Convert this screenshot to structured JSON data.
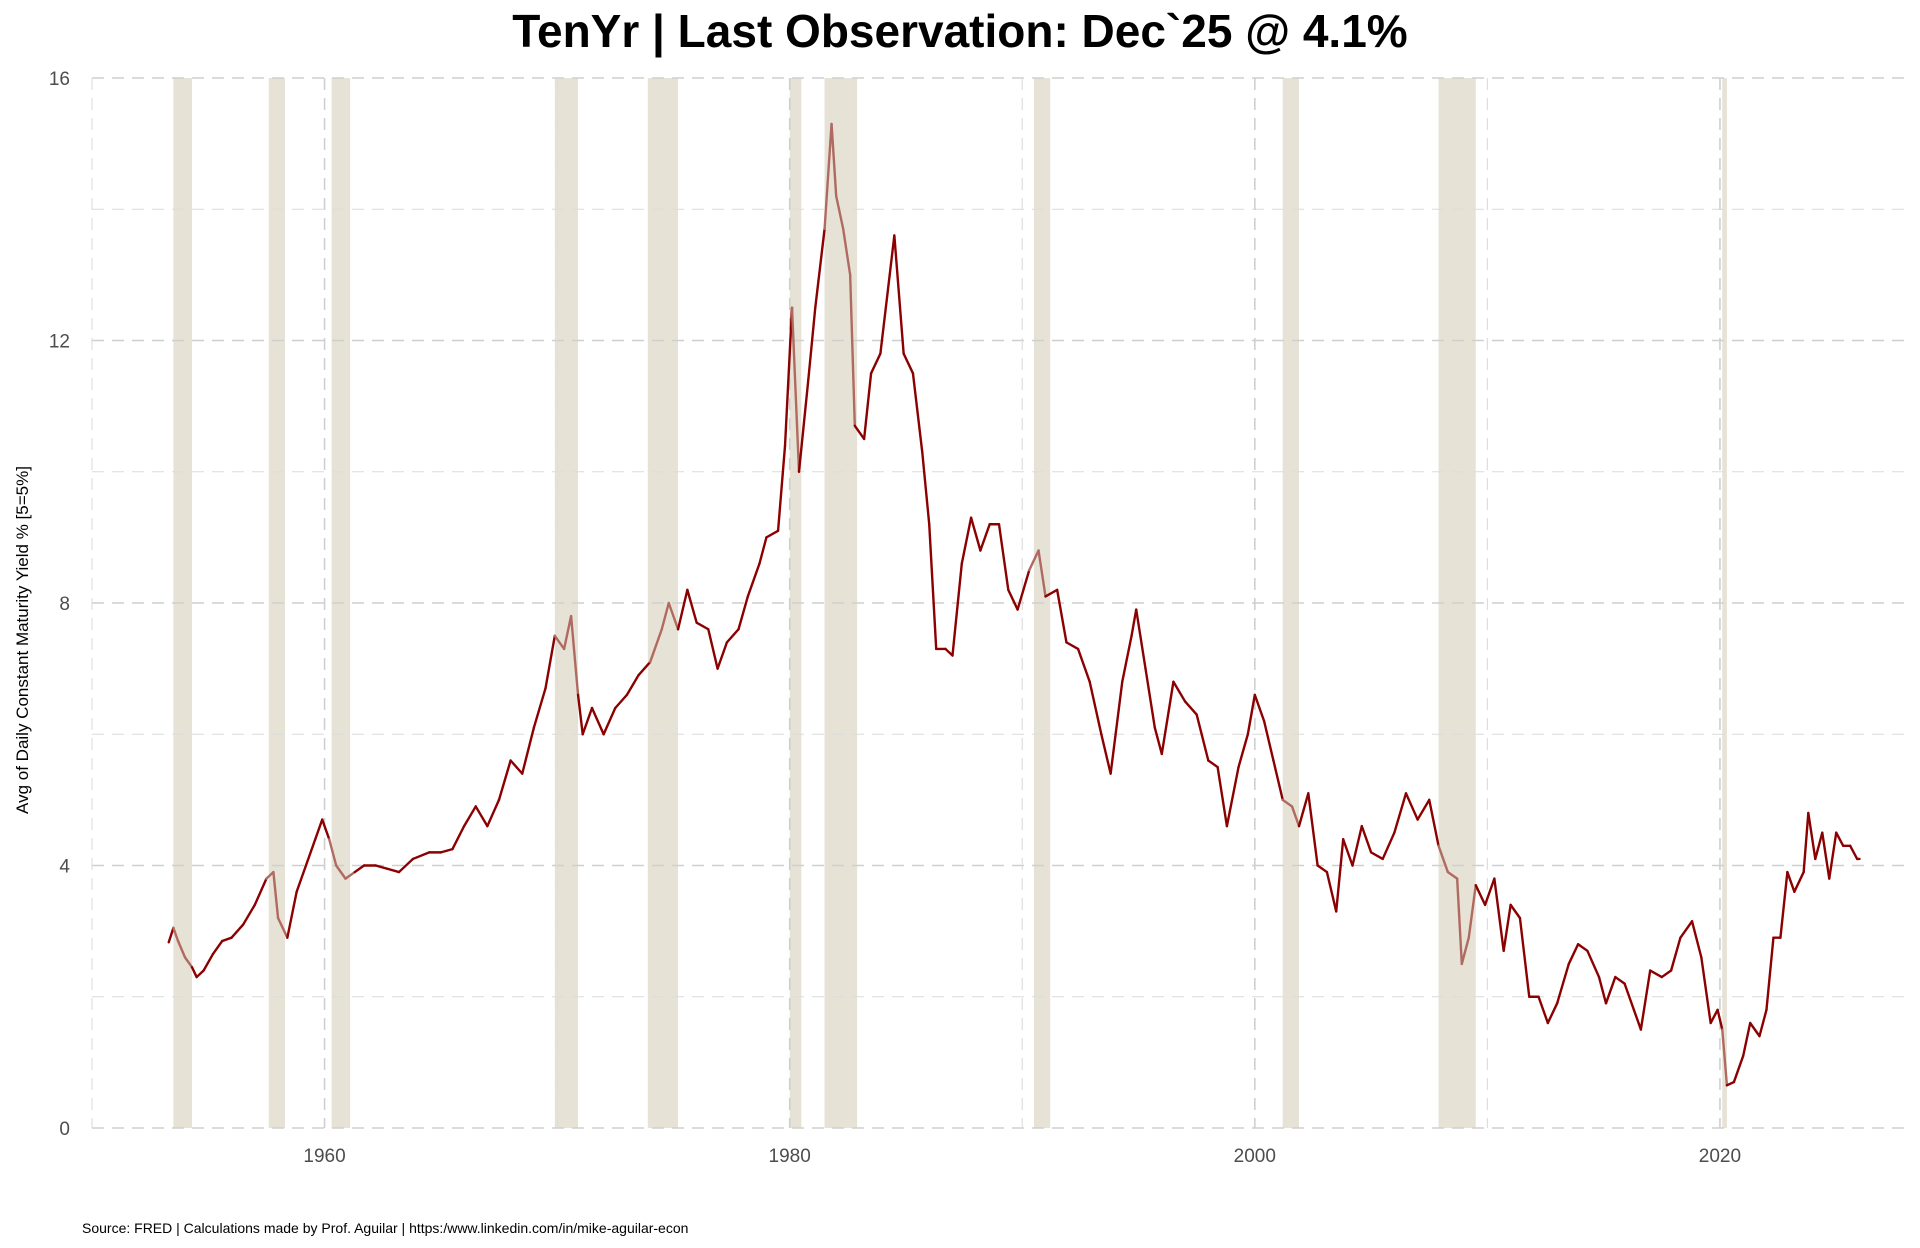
{
  "chart_data": {
    "type": "line",
    "title": "TenYr | Last Observation: Dec`25 @ 4.1%",
    "xlabel": "",
    "ylabel": "Avg of Daily Constant Maturity Yield % [5=5%]",
    "xlim": [
      1950,
      2028
    ],
    "ylim": [
      0,
      16
    ],
    "x_ticks": [
      1960,
      1980,
      2000,
      2020
    ],
    "y_ticks": [
      0,
      4,
      8,
      12,
      16
    ],
    "grid": true,
    "legend": "none",
    "source": "Source: FRED | Calculations made by Prof. Aguilar | https:/www.linkedin.com/in/mike-aguilar-econ",
    "colors": {
      "line": "#8b0000",
      "recession_line": "#b06a60",
      "recession_band": "#e6e2d6",
      "grid": "#cccccc"
    },
    "recessions": [
      [
        1953.5,
        1954.3
      ],
      [
        1957.6,
        1958.3
      ],
      [
        1960.3,
        1961.1
      ],
      [
        1969.9,
        1970.9
      ],
      [
        1973.9,
        1975.2
      ],
      [
        1980.0,
        1980.5
      ],
      [
        1981.5,
        1982.9
      ],
      [
        1990.5,
        1991.2
      ],
      [
        2001.2,
        2001.9
      ],
      [
        2007.9,
        2009.5
      ],
      [
        2020.1,
        2020.3
      ]
    ],
    "series": [
      {
        "points": [
          [
            1953.3,
            2.83
          ],
          [
            1953.5,
            3.05
          ],
          [
            1953.7,
            2.85
          ],
          [
            1954.0,
            2.6
          ],
          [
            1954.3,
            2.45
          ],
          [
            1954.5,
            2.3
          ],
          [
            1954.8,
            2.4
          ],
          [
            1955.2,
            2.65
          ],
          [
            1955.6,
            2.85
          ],
          [
            1956.0,
            2.9
          ],
          [
            1956.5,
            3.1
          ],
          [
            1957.0,
            3.4
          ],
          [
            1957.5,
            3.8
          ],
          [
            1957.8,
            3.9
          ],
          [
            1958.0,
            3.2
          ],
          [
            1958.4,
            2.9
          ],
          [
            1958.8,
            3.6
          ],
          [
            1959.2,
            4.0
          ],
          [
            1959.6,
            4.4
          ],
          [
            1959.9,
            4.7
          ],
          [
            1960.2,
            4.4
          ],
          [
            1960.5,
            4.0
          ],
          [
            1960.9,
            3.8
          ],
          [
            1961.3,
            3.9
          ],
          [
            1961.7,
            4.0
          ],
          [
            1962.2,
            4.0
          ],
          [
            1962.7,
            3.95
          ],
          [
            1963.2,
            3.9
          ],
          [
            1963.8,
            4.1
          ],
          [
            1964.5,
            4.2
          ],
          [
            1965.0,
            4.2
          ],
          [
            1965.5,
            4.25
          ],
          [
            1966.0,
            4.6
          ],
          [
            1966.5,
            4.9
          ],
          [
            1967.0,
            4.6
          ],
          [
            1967.5,
            5.0
          ],
          [
            1968.0,
            5.6
          ],
          [
            1968.5,
            5.4
          ],
          [
            1969.0,
            6.1
          ],
          [
            1969.5,
            6.7
          ],
          [
            1969.9,
            7.5
          ],
          [
            1970.3,
            7.3
          ],
          [
            1970.6,
            7.8
          ],
          [
            1970.9,
            6.6
          ],
          [
            1971.1,
            6.0
          ],
          [
            1971.5,
            6.4
          ],
          [
            1972.0,
            6.0
          ],
          [
            1972.5,
            6.4
          ],
          [
            1973.0,
            6.6
          ],
          [
            1973.5,
            6.9
          ],
          [
            1974.0,
            7.1
          ],
          [
            1974.5,
            7.6
          ],
          [
            1974.8,
            8.0
          ],
          [
            1975.2,
            7.6
          ],
          [
            1975.6,
            8.2
          ],
          [
            1976.0,
            7.7
          ],
          [
            1976.5,
            7.6
          ],
          [
            1976.9,
            7.0
          ],
          [
            1977.3,
            7.4
          ],
          [
            1977.8,
            7.6
          ],
          [
            1978.2,
            8.1
          ],
          [
            1978.7,
            8.6
          ],
          [
            1979.0,
            9.0
          ],
          [
            1979.5,
            9.1
          ],
          [
            1979.8,
            10.4
          ],
          [
            1980.1,
            12.5
          ],
          [
            1980.4,
            10.0
          ],
          [
            1980.8,
            11.4
          ],
          [
            1981.1,
            12.5
          ],
          [
            1981.5,
            13.7
          ],
          [
            1981.8,
            15.3
          ],
          [
            1982.0,
            14.2
          ],
          [
            1982.3,
            13.7
          ],
          [
            1982.6,
            13.0
          ],
          [
            1982.8,
            10.7
          ],
          [
            1983.2,
            10.5
          ],
          [
            1983.5,
            11.5
          ],
          [
            1983.9,
            11.8
          ],
          [
            1984.3,
            13.0
          ],
          [
            1984.5,
            13.6
          ],
          [
            1984.9,
            11.8
          ],
          [
            1985.3,
            11.5
          ],
          [
            1985.7,
            10.3
          ],
          [
            1986.0,
            9.2
          ],
          [
            1986.3,
            7.3
          ],
          [
            1986.7,
            7.3
          ],
          [
            1987.0,
            7.2
          ],
          [
            1987.4,
            8.6
          ],
          [
            1987.8,
            9.3
          ],
          [
            1988.2,
            8.8
          ],
          [
            1988.6,
            9.2
          ],
          [
            1989.0,
            9.2
          ],
          [
            1989.4,
            8.2
          ],
          [
            1989.8,
            7.9
          ],
          [
            1990.3,
            8.5
          ],
          [
            1990.7,
            8.8
          ],
          [
            1991.0,
            8.1
          ],
          [
            1991.5,
            8.2
          ],
          [
            1991.9,
            7.4
          ],
          [
            1992.4,
            7.3
          ],
          [
            1992.9,
            6.8
          ],
          [
            1993.4,
            6.0
          ],
          [
            1993.8,
            5.4
          ],
          [
            1994.3,
            6.8
          ],
          [
            1994.7,
            7.5
          ],
          [
            1994.9,
            7.9
          ],
          [
            1995.3,
            7.0
          ],
          [
            1995.7,
            6.1
          ],
          [
            1996.0,
            5.7
          ],
          [
            1996.5,
            6.8
          ],
          [
            1997.0,
            6.5
          ],
          [
            1997.5,
            6.3
          ],
          [
            1998.0,
            5.6
          ],
          [
            1998.4,
            5.5
          ],
          [
            1998.8,
            4.6
          ],
          [
            1999.3,
            5.5
          ],
          [
            1999.7,
            6.0
          ],
          [
            2000.0,
            6.6
          ],
          [
            2000.4,
            6.2
          ],
          [
            2000.8,
            5.6
          ],
          [
            2001.2,
            5.0
          ],
          [
            2001.6,
            4.9
          ],
          [
            2001.9,
            4.6
          ],
          [
            2002.3,
            5.1
          ],
          [
            2002.7,
            4.0
          ],
          [
            2003.1,
            3.9
          ],
          [
            2003.5,
            3.3
          ],
          [
            2003.8,
            4.4
          ],
          [
            2004.2,
            4.0
          ],
          [
            2004.6,
            4.6
          ],
          [
            2005.0,
            4.2
          ],
          [
            2005.5,
            4.1
          ],
          [
            2006.0,
            4.5
          ],
          [
            2006.5,
            5.1
          ],
          [
            2007.0,
            4.7
          ],
          [
            2007.5,
            5.0
          ],
          [
            2007.9,
            4.3
          ],
          [
            2008.3,
            3.9
          ],
          [
            2008.7,
            3.8
          ],
          [
            2008.9,
            2.5
          ],
          [
            2009.2,
            2.9
          ],
          [
            2009.5,
            3.7
          ],
          [
            2009.9,
            3.4
          ],
          [
            2010.3,
            3.8
          ],
          [
            2010.7,
            2.7
          ],
          [
            2011.0,
            3.4
          ],
          [
            2011.4,
            3.2
          ],
          [
            2011.8,
            2.0
          ],
          [
            2012.2,
            2.0
          ],
          [
            2012.6,
            1.6
          ],
          [
            2013.0,
            1.9
          ],
          [
            2013.5,
            2.5
          ],
          [
            2013.9,
            2.8
          ],
          [
            2014.3,
            2.7
          ],
          [
            2014.8,
            2.3
          ],
          [
            2015.1,
            1.9
          ],
          [
            2015.5,
            2.3
          ],
          [
            2015.9,
            2.2
          ],
          [
            2016.3,
            1.8
          ],
          [
            2016.6,
            1.5
          ],
          [
            2017.0,
            2.4
          ],
          [
            2017.5,
            2.3
          ],
          [
            2017.9,
            2.4
          ],
          [
            2018.3,
            2.9
          ],
          [
            2018.8,
            3.15
          ],
          [
            2019.2,
            2.6
          ],
          [
            2019.6,
            1.6
          ],
          [
            2019.9,
            1.8
          ],
          [
            2020.1,
            1.5
          ],
          [
            2020.3,
            0.65
          ],
          [
            2020.6,
            0.7
          ],
          [
            2021.0,
            1.1
          ],
          [
            2021.3,
            1.6
          ],
          [
            2021.7,
            1.4
          ],
          [
            2022.0,
            1.8
          ],
          [
            2022.3,
            2.9
          ],
          [
            2022.6,
            2.9
          ],
          [
            2022.9,
            3.9
          ],
          [
            2023.2,
            3.6
          ],
          [
            2023.6,
            3.9
          ],
          [
            2023.8,
            4.8
          ],
          [
            2024.1,
            4.1
          ],
          [
            2024.4,
            4.5
          ],
          [
            2024.7,
            3.8
          ],
          [
            2025.0,
            4.5
          ],
          [
            2025.3,
            4.3
          ],
          [
            2025.6,
            4.3
          ],
          [
            2025.9,
            4.1
          ],
          [
            2026.0,
            4.1
          ]
        ]
      }
    ]
  }
}
